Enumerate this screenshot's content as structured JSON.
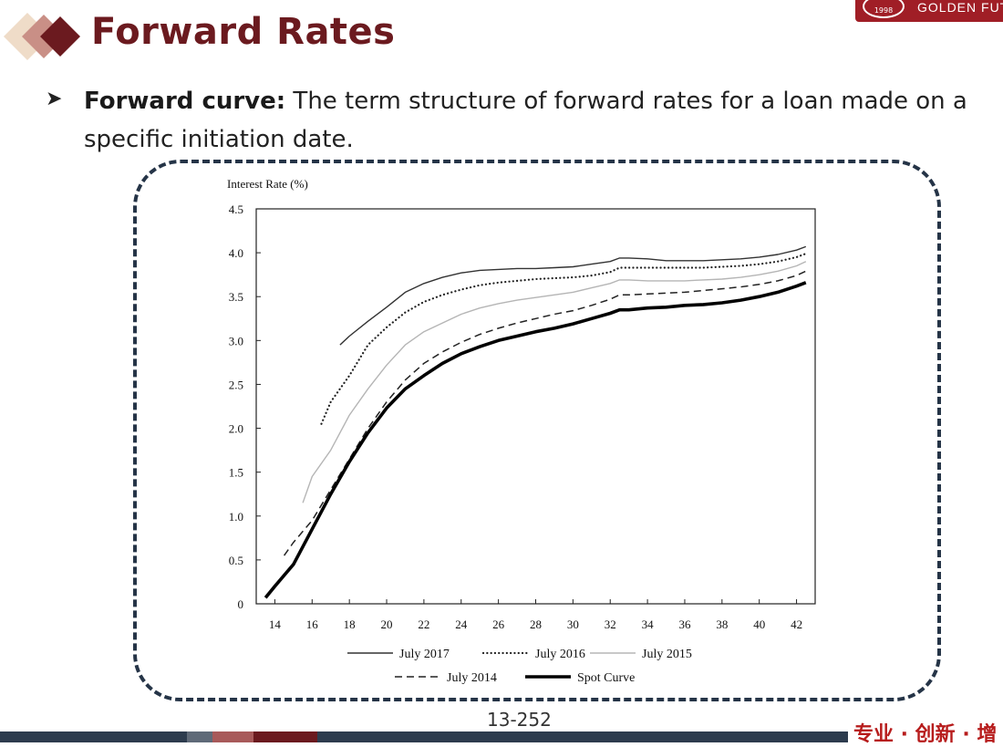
{
  "slide": {
    "title": "Forward Rates",
    "bullet_term": "Forward curve:",
    "bullet_text": " The term structure of forward rates for a loan made on a specific initiation date.",
    "page_number": "13-252",
    "logo_text": "GOLDEN FUTU",
    "logo_seal_text": "1998",
    "slogan": "专业 · 创新 · 增",
    "accent_color": "#6b1a1f",
    "frame_color": "#253447"
  },
  "chart_data": {
    "type": "line",
    "title": "",
    "ylabel": "Interest Rate (%)",
    "xlabel": "",
    "xlim": [
      13,
      43
    ],
    "ylim": [
      0,
      4.5
    ],
    "x_ticks": [
      14,
      16,
      18,
      20,
      22,
      24,
      26,
      28,
      30,
      32,
      34,
      36,
      38,
      40,
      42
    ],
    "y_ticks": [
      0,
      0.5,
      1.0,
      1.5,
      2.0,
      2.5,
      3.0,
      3.5,
      4.0,
      4.5
    ],
    "y_tick_labels": [
      "0",
      "0.5",
      "1.0",
      "1.5",
      "2.0",
      "2.5",
      "3.0",
      "3.5",
      "4.0",
      "4.5"
    ],
    "grid": false,
    "legend_position": "bottom",
    "series": [
      {
        "name": "July 2017",
        "style": "thin-solid",
        "color": "#333333",
        "points": [
          [
            17.5,
            2.95
          ],
          [
            18,
            3.05
          ],
          [
            19,
            3.22
          ],
          [
            20,
            3.38
          ],
          [
            21,
            3.55
          ],
          [
            22,
            3.65
          ],
          [
            23,
            3.72
          ],
          [
            24,
            3.77
          ],
          [
            25,
            3.8
          ],
          [
            26,
            3.81
          ],
          [
            27,
            3.82
          ],
          [
            28,
            3.82
          ],
          [
            29,
            3.83
          ],
          [
            30,
            3.84
          ],
          [
            31,
            3.87
          ],
          [
            32,
            3.9
          ],
          [
            32.5,
            3.94
          ],
          [
            33,
            3.94
          ],
          [
            34,
            3.93
          ],
          [
            35,
            3.91
          ],
          [
            36,
            3.91
          ],
          [
            37,
            3.91
          ],
          [
            38,
            3.92
          ],
          [
            39,
            3.93
          ],
          [
            40,
            3.95
          ],
          [
            41,
            3.98
          ],
          [
            42,
            4.03
          ],
          [
            42.5,
            4.07
          ]
        ]
      },
      {
        "name": "July 2016",
        "style": "dotted",
        "color": "#222222",
        "points": [
          [
            16.5,
            2.05
          ],
          [
            17,
            2.3
          ],
          [
            18,
            2.6
          ],
          [
            19,
            2.95
          ],
          [
            20,
            3.15
          ],
          [
            21,
            3.32
          ],
          [
            22,
            3.44
          ],
          [
            23,
            3.52
          ],
          [
            24,
            3.58
          ],
          [
            25,
            3.63
          ],
          [
            26,
            3.66
          ],
          [
            27,
            3.68
          ],
          [
            28,
            3.7
          ],
          [
            29,
            3.71
          ],
          [
            30,
            3.72
          ],
          [
            31,
            3.74
          ],
          [
            32,
            3.78
          ],
          [
            32.5,
            3.83
          ],
          [
            33,
            3.83
          ],
          [
            34,
            3.83
          ],
          [
            35,
            3.83
          ],
          [
            36,
            3.83
          ],
          [
            37,
            3.83
          ],
          [
            38,
            3.84
          ],
          [
            39,
            3.85
          ],
          [
            40,
            3.87
          ],
          [
            41,
            3.9
          ],
          [
            42,
            3.95
          ],
          [
            42.5,
            3.99
          ]
        ]
      },
      {
        "name": "July 2015",
        "style": "light-solid",
        "color": "#b5b5b5",
        "points": [
          [
            15.5,
            1.15
          ],
          [
            16,
            1.45
          ],
          [
            17,
            1.75
          ],
          [
            18,
            2.15
          ],
          [
            19,
            2.45
          ],
          [
            20,
            2.72
          ],
          [
            21,
            2.95
          ],
          [
            22,
            3.1
          ],
          [
            23,
            3.2
          ],
          [
            24,
            3.3
          ],
          [
            25,
            3.37
          ],
          [
            26,
            3.42
          ],
          [
            27,
            3.46
          ],
          [
            28,
            3.49
          ],
          [
            29,
            3.52
          ],
          [
            30,
            3.55
          ],
          [
            31,
            3.6
          ],
          [
            32,
            3.65
          ],
          [
            32.5,
            3.69
          ],
          [
            33,
            3.69
          ],
          [
            34,
            3.68
          ],
          [
            35,
            3.68
          ],
          [
            36,
            3.68
          ],
          [
            37,
            3.69
          ],
          [
            38,
            3.7
          ],
          [
            39,
            3.72
          ],
          [
            40,
            3.75
          ],
          [
            41,
            3.79
          ],
          [
            42,
            3.85
          ],
          [
            42.5,
            3.9
          ]
        ]
      },
      {
        "name": "July 2014",
        "style": "dashed",
        "color": "#222222",
        "points": [
          [
            14.5,
            0.55
          ],
          [
            15,
            0.7
          ],
          [
            16,
            0.95
          ],
          [
            17,
            1.3
          ],
          [
            18,
            1.65
          ],
          [
            19,
            2.0
          ],
          [
            20,
            2.3
          ],
          [
            21,
            2.55
          ],
          [
            22,
            2.74
          ],
          [
            23,
            2.87
          ],
          [
            24,
            2.98
          ],
          [
            25,
            3.07
          ],
          [
            26,
            3.14
          ],
          [
            27,
            3.2
          ],
          [
            28,
            3.25
          ],
          [
            29,
            3.3
          ],
          [
            30,
            3.34
          ],
          [
            31,
            3.4
          ],
          [
            32,
            3.47
          ],
          [
            32.5,
            3.52
          ],
          [
            33,
            3.52
          ],
          [
            34,
            3.53
          ],
          [
            35,
            3.54
          ],
          [
            36,
            3.55
          ],
          [
            37,
            3.57
          ],
          [
            38,
            3.59
          ],
          [
            39,
            3.61
          ],
          [
            40,
            3.64
          ],
          [
            41,
            3.68
          ],
          [
            42,
            3.74
          ],
          [
            42.5,
            3.79
          ]
        ]
      },
      {
        "name": "Spot Curve",
        "style": "bold-solid",
        "color": "#000000",
        "points": [
          [
            13.5,
            0.07
          ],
          [
            14,
            0.2
          ],
          [
            15,
            0.45
          ],
          [
            16,
            0.85
          ],
          [
            17,
            1.25
          ],
          [
            18,
            1.62
          ],
          [
            19,
            1.95
          ],
          [
            20,
            2.23
          ],
          [
            21,
            2.45
          ],
          [
            22,
            2.6
          ],
          [
            23,
            2.74
          ],
          [
            24,
            2.85
          ],
          [
            25,
            2.93
          ],
          [
            26,
            3.0
          ],
          [
            27,
            3.05
          ],
          [
            28,
            3.1
          ],
          [
            29,
            3.14
          ],
          [
            30,
            3.19
          ],
          [
            31,
            3.25
          ],
          [
            32,
            3.31
          ],
          [
            32.5,
            3.35
          ],
          [
            33,
            3.35
          ],
          [
            34,
            3.37
          ],
          [
            35,
            3.38
          ],
          [
            36,
            3.4
          ],
          [
            37,
            3.41
          ],
          [
            38,
            3.43
          ],
          [
            39,
            3.46
          ],
          [
            40,
            3.5
          ],
          [
            41,
            3.55
          ],
          [
            42,
            3.62
          ],
          [
            42.5,
            3.66
          ]
        ]
      }
    ]
  }
}
